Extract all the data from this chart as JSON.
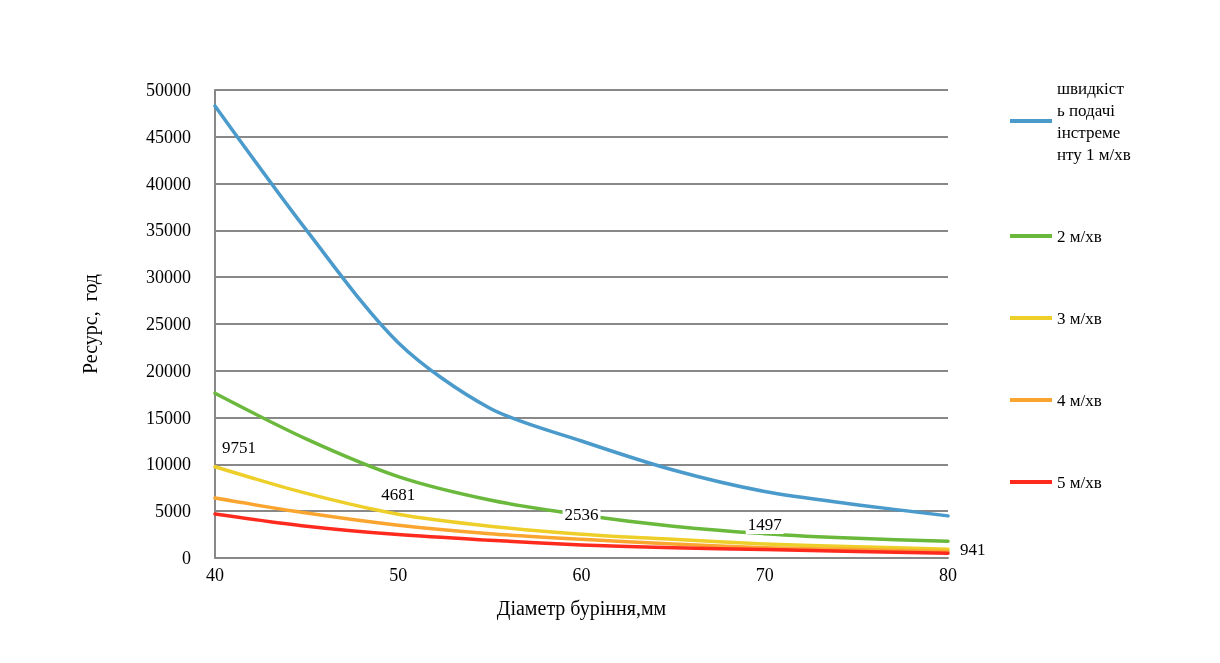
{
  "chart_data": {
    "type": "line",
    "xlabel": "Діаметр буріння,мм",
    "ylabel": "Ресурс,  год",
    "x": [
      40,
      45,
      50,
      55,
      60,
      65,
      70,
      75,
      80
    ],
    "series": [
      {
        "name": "швидкість подачі інстременту 1 м/хв",
        "color": "#4a9acb",
        "values": [
          48300,
          35000,
          23000,
          16000,
          12500,
          9400,
          7100,
          5700,
          4500
        ]
      },
      {
        "name": "2 м/хв",
        "color": "#6ab93c",
        "values": [
          17600,
          12700,
          8700,
          6200,
          4600,
          3400,
          2600,
          2100,
          1800
        ]
      },
      {
        "name": "3 м/хв",
        "color": "#eecf2a",
        "values": [
          9751,
          6900,
          4681,
          3400,
          2536,
          2000,
          1497,
          1200,
          941
        ],
        "value_labels": [
          "9751",
          null,
          "4681",
          null,
          "2536",
          null,
          "1497",
          null,
          "941"
        ]
      },
      {
        "name": "4 м/хв",
        "color": "#f9a530",
        "values": [
          6400,
          4800,
          3500,
          2600,
          2000,
          1500,
          1100,
          900,
          700
        ]
      },
      {
        "name": "5 м/хв",
        "color": "#ff2a1e",
        "values": [
          4700,
          3400,
          2500,
          1900,
          1400,
          1100,
          900,
          700,
          500
        ]
      }
    ],
    "xlim": [
      40,
      80
    ],
    "xticks": [
      40,
      50,
      60,
      70,
      80
    ],
    "ylim": [
      0,
      50000
    ],
    "yticks": [
      0,
      5000,
      10000,
      15000,
      20000,
      25000,
      30000,
      35000,
      40000,
      45000,
      50000
    ],
    "grid": "y",
    "legend": "right",
    "marker": "none",
    "line_style": "solid"
  }
}
